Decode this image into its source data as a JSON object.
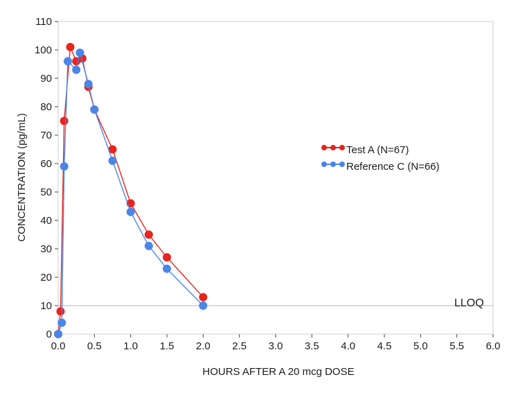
{
  "chart_data": {
    "type": "line",
    "xlabel": "HOURS AFTER A 20 mcg DOSE",
    "ylabel": "CONCENTRATION (pg/mL)",
    "xlim": [
      0,
      6
    ],
    "ylim": [
      0,
      110
    ],
    "x_ticks": [
      "0.0",
      "0.5",
      "1.0",
      "1.5",
      "2.0",
      "2.5",
      "3.0",
      "3.5",
      "4.0",
      "4.5",
      "5.0",
      "5.5",
      "6.0"
    ],
    "y_ticks": [
      "0",
      "10",
      "20",
      "30",
      "40",
      "50",
      "60",
      "70",
      "80",
      "90",
      "100",
      "110"
    ],
    "grid": false,
    "legend_position": "right",
    "series": [
      {
        "name": "Test A (N=67)",
        "color": "#e8241c",
        "x": [
          0,
          0.033,
          0.083,
          0.167,
          0.25,
          0.333,
          0.417,
          0.5,
          0.75,
          1.0,
          1.25,
          1.5,
          2.0
        ],
        "y": [
          0,
          8,
          75,
          101,
          96,
          97,
          87,
          79,
          65,
          46,
          35,
          27,
          13
        ]
      },
      {
        "name": "Reference C (N=66)",
        "color": "#4a86e8",
        "x": [
          0,
          0.05,
          0.083,
          0.133,
          0.25,
          0.3,
          0.417,
          0.5,
          0.75,
          1.0,
          1.25,
          1.5,
          2.0
        ],
        "y": [
          0,
          4,
          59,
          96,
          93,
          99,
          88,
          79,
          61,
          43,
          31,
          23,
          10
        ]
      }
    ],
    "annotations": [
      {
        "text": "LLOQ",
        "y": 10
      }
    ]
  }
}
